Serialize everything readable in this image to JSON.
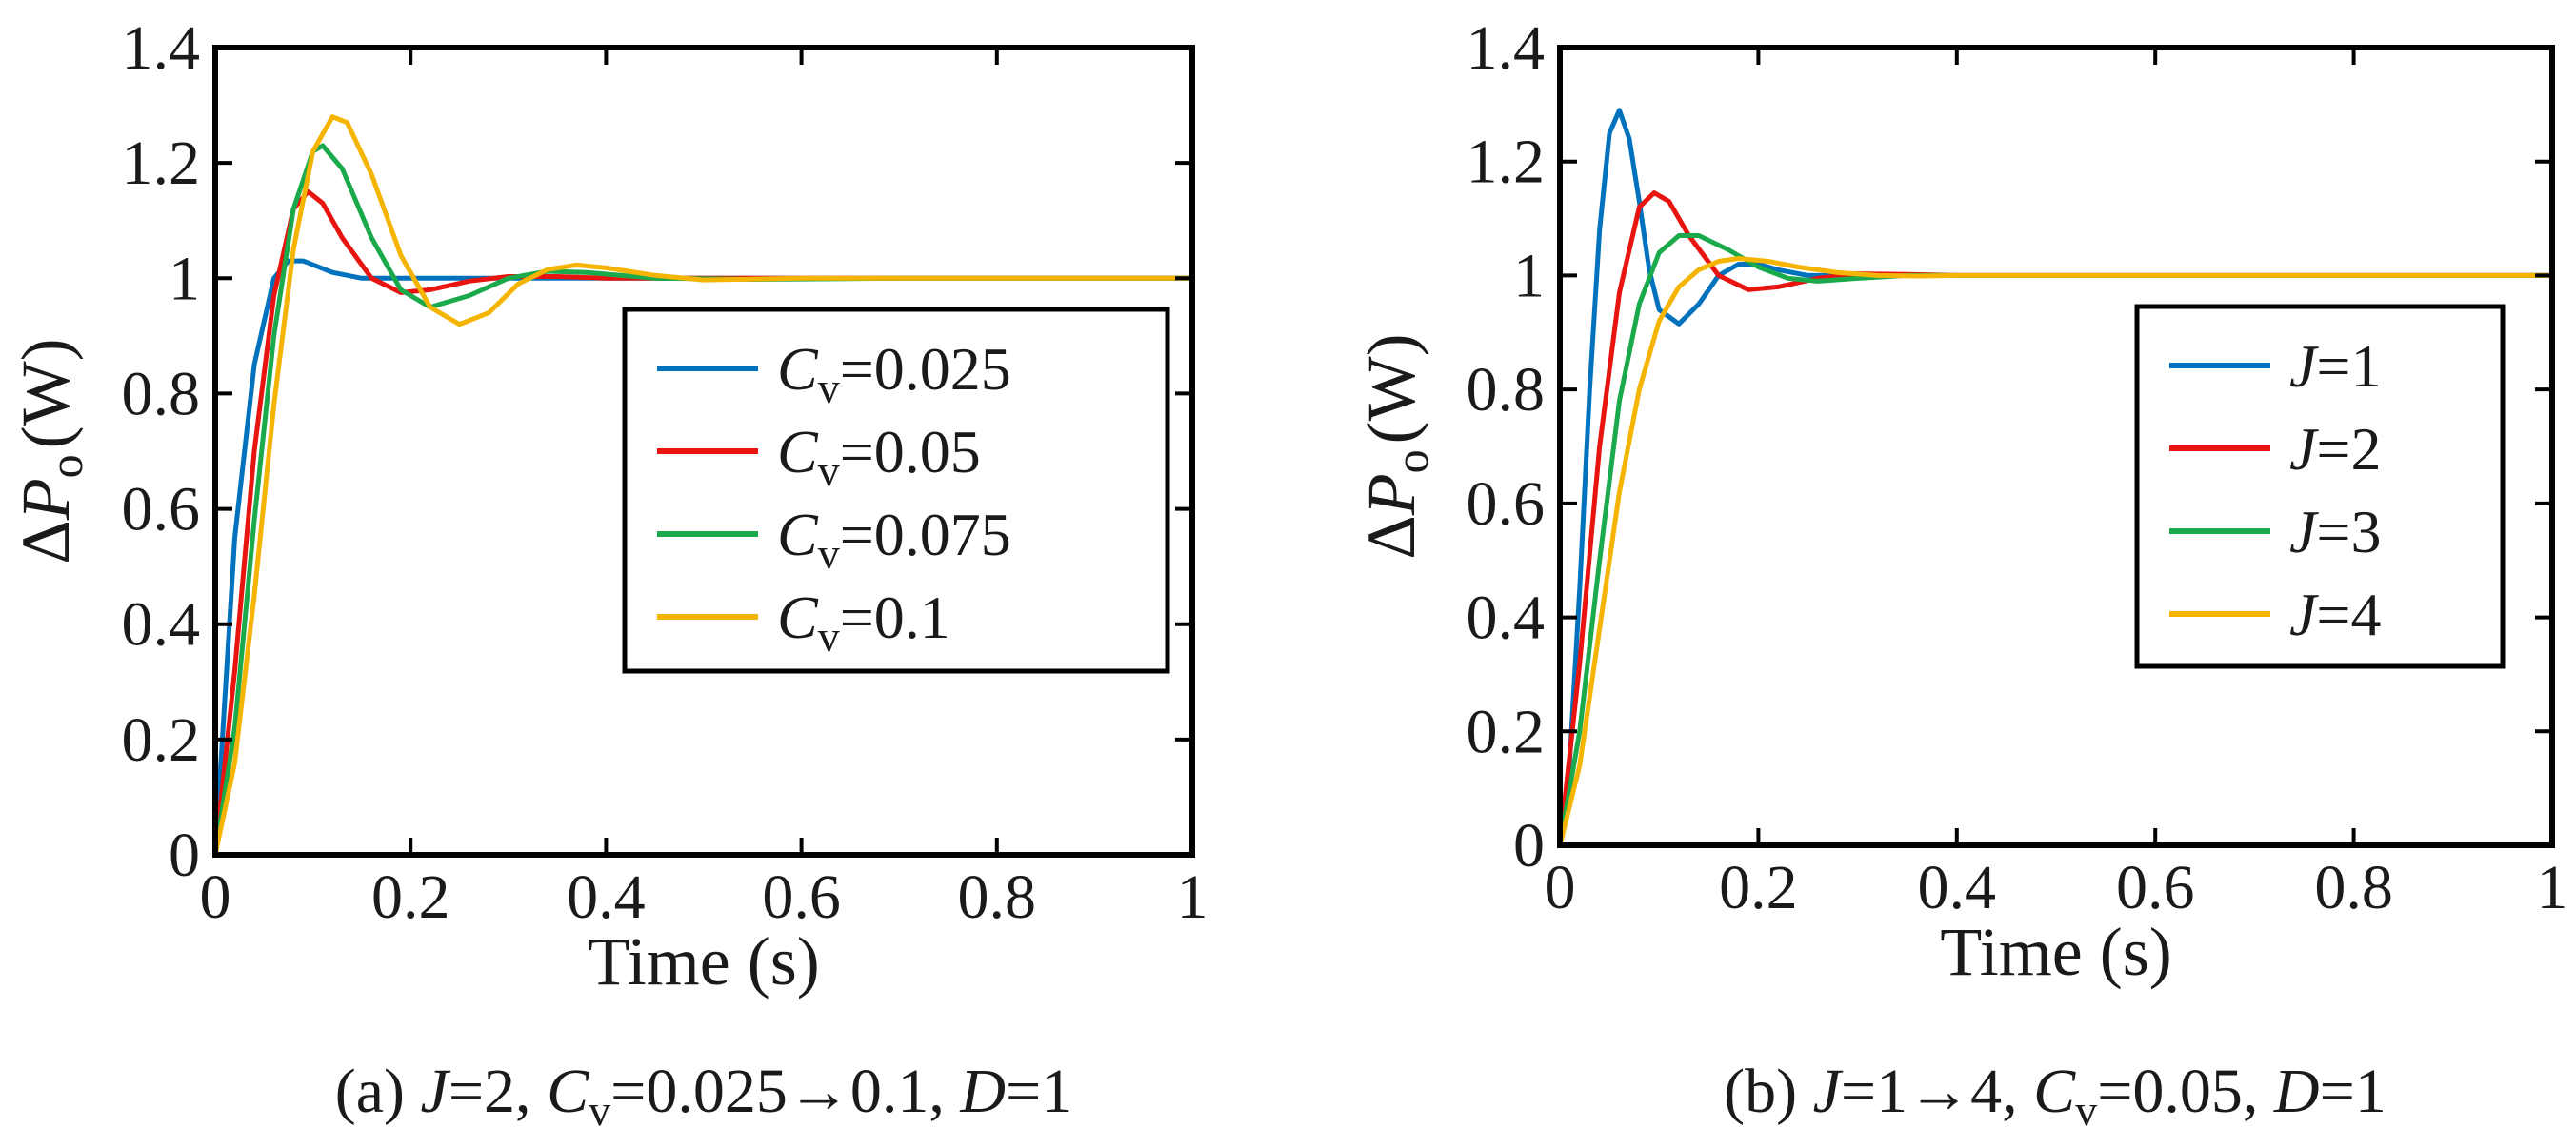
{
  "chart_data": [
    {
      "type": "line",
      "caption": {
        "p1": "(a) ",
        "J": "J",
        "p2": "=2, ",
        "C": "C",
        "Csub": "v",
        "p3": "=0.025→0.1, ",
        "D": "D",
        "p4": "=1"
      },
      "xlabel": "Time (s)",
      "ylabel": {
        "delta": "Δ",
        "P": "P",
        "sub": "o",
        "unit": "(W)"
      },
      "xlim": [
        0,
        1
      ],
      "ylim": [
        0,
        1.4
      ],
      "xticks": [
        "0",
        "0.2",
        "0.4",
        "0.6",
        "0.8",
        "1"
      ],
      "yticks": [
        "0",
        "0.2",
        "0.4",
        "0.6",
        "0.8",
        "1",
        "1.2",
        "1.4"
      ],
      "grid": false,
      "legend_position": "right",
      "series": [
        {
          "sym": "C",
          "sub": "v",
          "val": "=0.025",
          "color": "#0072BD",
          "x": [
            0,
            0.02,
            0.04,
            0.06,
            0.075,
            0.09,
            0.12,
            0.15,
            0.2,
            0.3,
            0.4,
            0.6,
            0.8,
            1.0
          ],
          "y": [
            0,
            0.55,
            0.85,
            1.0,
            1.03,
            1.03,
            1.01,
            1.0,
            1.0,
            1.0,
            1.0,
            1.0,
            1.0,
            1.0
          ]
        },
        {
          "sym": "C",
          "sub": "v",
          "val": "=0.05",
          "color": "#E8140F",
          "x": [
            0,
            0.02,
            0.04,
            0.06,
            0.08,
            0.095,
            0.11,
            0.13,
            0.16,
            0.19,
            0.22,
            0.26,
            0.3,
            0.35,
            0.4,
            0.5,
            0.7,
            1.0
          ],
          "y": [
            0,
            0.32,
            0.7,
            0.97,
            1.12,
            1.15,
            1.13,
            1.07,
            1.0,
            0.975,
            0.98,
            0.995,
            1.003,
            1.003,
            1.0,
            1.0,
            1.0,
            1.0
          ]
        },
        {
          "sym": "C",
          "sub": "v",
          "val": "=0.075",
          "color": "#1AAA4B",
          "x": [
            0,
            0.02,
            0.04,
            0.06,
            0.08,
            0.1,
            0.11,
            0.13,
            0.16,
            0.19,
            0.22,
            0.26,
            0.3,
            0.34,
            0.38,
            0.45,
            0.55,
            0.7,
            1.0
          ],
          "y": [
            0,
            0.22,
            0.58,
            0.9,
            1.12,
            1.22,
            1.23,
            1.19,
            1.07,
            0.98,
            0.95,
            0.97,
            1.0,
            1.012,
            1.01,
            1.0,
            0.998,
            1.0,
            1.0
          ]
        },
        {
          "sym": "C",
          "sub": "v",
          "val": "=0.1",
          "color": "#F5B400",
          "x": [
            0,
            0.02,
            0.04,
            0.06,
            0.08,
            0.1,
            0.12,
            0.135,
            0.16,
            0.19,
            0.22,
            0.25,
            0.28,
            0.31,
            0.34,
            0.37,
            0.4,
            0.45,
            0.5,
            0.6,
            0.7,
            1.0
          ],
          "y": [
            0,
            0.16,
            0.45,
            0.78,
            1.05,
            1.22,
            1.28,
            1.27,
            1.18,
            1.04,
            0.95,
            0.92,
            0.94,
            0.99,
            1.015,
            1.023,
            1.018,
            1.005,
            0.997,
            1.0,
            1.0,
            1.0
          ]
        }
      ]
    },
    {
      "type": "line",
      "caption": {
        "p1": "(b) ",
        "J": "J",
        "p2": "=1→4, ",
        "C": "C",
        "Csub": "v",
        "p3": "=0.05, ",
        "D": "D",
        "p4": "=1"
      },
      "xlabel": "Time (s)",
      "ylabel": {
        "delta": "Δ",
        "P": "P",
        "sub": "o",
        "unit": "(W)"
      },
      "xlim": [
        0,
        1
      ],
      "ylim": [
        0,
        1.4
      ],
      "xticks": [
        "0",
        "0.2",
        "0.4",
        "0.6",
        "0.8",
        "1"
      ],
      "yticks": [
        "0",
        "0.2",
        "0.4",
        "0.6",
        "0.8",
        "1",
        "1.2",
        "1.4"
      ],
      "grid": false,
      "legend_position": "right",
      "series": [
        {
          "sym": "J",
          "sub": "",
          "val": "=1",
          "color": "#0072BD",
          "x": [
            0,
            0.01,
            0.02,
            0.03,
            0.04,
            0.05,
            0.06,
            0.07,
            0.08,
            0.09,
            0.1,
            0.12,
            0.14,
            0.16,
            0.18,
            0.2,
            0.22,
            0.25,
            0.3,
            0.4,
            1.0
          ],
          "y": [
            0,
            0.15,
            0.45,
            0.8,
            1.08,
            1.25,
            1.29,
            1.24,
            1.13,
            1.01,
            0.94,
            0.915,
            0.95,
            1.0,
            1.02,
            1.02,
            1.01,
            1.0,
            1.0,
            1.0,
            1.0
          ]
        },
        {
          "sym": "J",
          "sub": "",
          "val": "=2",
          "color": "#E8140F",
          "x": [
            0,
            0.02,
            0.04,
            0.06,
            0.08,
            0.095,
            0.11,
            0.13,
            0.16,
            0.19,
            0.22,
            0.26,
            0.3,
            0.35,
            0.4,
            0.5,
            1.0
          ],
          "y": [
            0,
            0.32,
            0.7,
            0.97,
            1.12,
            1.145,
            1.13,
            1.07,
            1.0,
            0.975,
            0.98,
            0.995,
            1.003,
            1.002,
            1.0,
            1.0,
            1.0
          ]
        },
        {
          "sym": "J",
          "sub": "",
          "val": "=3",
          "color": "#1AAA4B",
          "x": [
            0,
            0.02,
            0.04,
            0.06,
            0.08,
            0.1,
            0.12,
            0.14,
            0.17,
            0.2,
            0.23,
            0.26,
            0.3,
            0.35,
            0.4,
            0.5,
            1.0
          ],
          "y": [
            0,
            0.2,
            0.5,
            0.78,
            0.95,
            1.04,
            1.07,
            1.07,
            1.045,
            1.015,
            0.995,
            0.99,
            0.995,
            1.0,
            1.0,
            1.0,
            1.0
          ]
        },
        {
          "sym": "J",
          "sub": "",
          "val": "=4",
          "color": "#F5B400",
          "x": [
            0,
            0.02,
            0.04,
            0.06,
            0.08,
            0.1,
            0.12,
            0.14,
            0.16,
            0.18,
            0.21,
            0.24,
            0.28,
            0.32,
            0.36,
            0.4,
            0.5,
            1.0
          ],
          "y": [
            0,
            0.14,
            0.38,
            0.62,
            0.8,
            0.92,
            0.98,
            1.01,
            1.025,
            1.03,
            1.025,
            1.015,
            1.005,
            1.0,
            0.999,
            1.0,
            1.0,
            1.0
          ]
        }
      ]
    }
  ]
}
